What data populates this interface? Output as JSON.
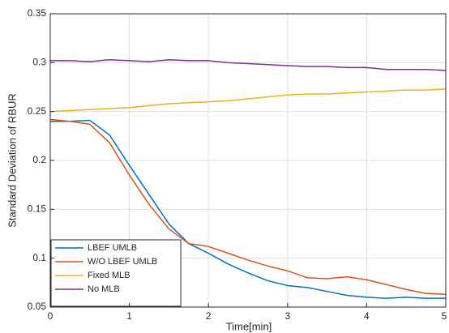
{
  "chart_data": {
    "type": "line",
    "xlabel": "Time[min]",
    "ylabel": "Standard Deviation of RBUR",
    "x": [
      0,
      0.25,
      0.5,
      0.75,
      1,
      1.25,
      1.5,
      1.75,
      2,
      2.25,
      2.5,
      2.75,
      3,
      3.25,
      3.5,
      3.75,
      4,
      4.25,
      4.5,
      4.75,
      5
    ],
    "series": [
      {
        "name": "LBEF UMLB",
        "color": "#0072bd",
        "values": [
          0.24,
          0.24,
          0.241,
          0.226,
          0.195,
          0.165,
          0.135,
          0.115,
          0.105,
          0.094,
          0.085,
          0.077,
          0.072,
          0.07,
          0.066,
          0.062,
          0.06,
          0.059,
          0.06,
          0.059,
          0.059
        ]
      },
      {
        "name": "W/O LBEF UMLB",
        "color": "#d95319",
        "values": [
          0.242,
          0.24,
          0.237,
          0.218,
          0.185,
          0.155,
          0.13,
          0.115,
          0.112,
          0.105,
          0.098,
          0.092,
          0.087,
          0.08,
          0.079,
          0.081,
          0.078,
          0.073,
          0.068,
          0.064,
          0.063
        ]
      },
      {
        "name": "Fixed MLB",
        "color": "#edb120",
        "values": [
          0.25,
          0.251,
          0.252,
          0.253,
          0.254,
          0.256,
          0.258,
          0.259,
          0.26,
          0.261,
          0.263,
          0.265,
          0.267,
          0.268,
          0.268,
          0.269,
          0.27,
          0.271,
          0.272,
          0.272,
          0.273
        ]
      },
      {
        "name": "No MLB",
        "color": "#7e2f8e",
        "values": [
          0.302,
          0.302,
          0.301,
          0.303,
          0.302,
          0.301,
          0.303,
          0.302,
          0.302,
          0.3,
          0.299,
          0.298,
          0.297,
          0.296,
          0.296,
          0.295,
          0.295,
          0.293,
          0.293,
          0.293,
          0.292
        ]
      }
    ],
    "xlim": [
      0,
      5
    ],
    "xticks": [
      0,
      1,
      2,
      3,
      4,
      5
    ],
    "ylim": [
      0.05,
      0.35
    ],
    "yticks": [
      0.05,
      0.1,
      0.15,
      0.2,
      0.25,
      0.3,
      0.35
    ],
    "grid": true,
    "legend": "lower left"
  }
}
